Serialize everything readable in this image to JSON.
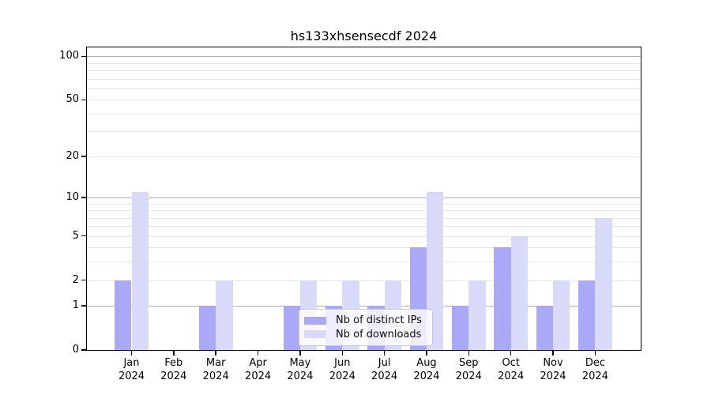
{
  "chart_data": {
    "type": "bar",
    "title": "hs133xhsensecdf 2024",
    "year": "2024",
    "months": [
      "Jan",
      "Feb",
      "Mar",
      "Apr",
      "May",
      "Jun",
      "Jul",
      "Aug",
      "Sep",
      "Oct",
      "Nov",
      "Dec"
    ],
    "series": [
      {
        "name": "Nb of distinct IPs",
        "color": "#a9a9f7",
        "values": [
          2,
          0,
          1,
          0,
          1,
          1,
          1,
          4,
          1,
          4,
          1,
          2
        ]
      },
      {
        "name": "Nb of downloads",
        "color": "#d9d9f9",
        "values": [
          11,
          0,
          2,
          0,
          2,
          2,
          2,
          11,
          2,
          5,
          2,
          7
        ]
      }
    ],
    "xlabel": "",
    "ylabel": "",
    "yscale": "log1p",
    "ylim": [
      0,
      115
    ],
    "yticks": [
      0,
      1,
      2,
      5,
      10,
      20,
      50,
      100
    ],
    "ytick_labels": [
      "0",
      "1",
      "2",
      "5",
      "10",
      "20",
      "50",
      "100"
    ],
    "major_gridlines": [
      1,
      10,
      100
    ],
    "minor_gridlines": [
      2,
      3,
      4,
      5,
      6,
      7,
      8,
      9,
      20,
      30,
      40,
      50,
      60,
      70,
      80,
      90
    ],
    "grid": "both",
    "legend_position": "lower center",
    "colors": {
      "major_grid": "#b0b0b0",
      "minor_grid": "#e8e8e8",
      "spine": "#000000",
      "text": "#000000",
      "legend_border": "#cccccc"
    }
  }
}
